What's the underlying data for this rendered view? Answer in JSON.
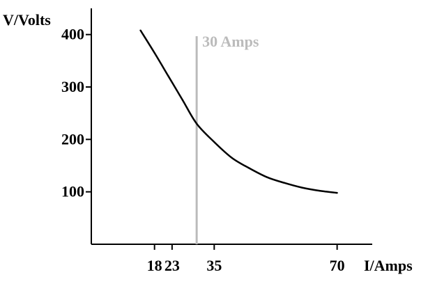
{
  "chart_data": {
    "type": "line",
    "title": "",
    "xlabel": "I/Amps",
    "ylabel": "V/Volts",
    "xlim": [
      0,
      80
    ],
    "ylim": [
      0,
      450
    ],
    "x_ticks": [
      18,
      23,
      35,
      70
    ],
    "x_tick_labels": [
      "18",
      "23",
      "35",
      "70"
    ],
    "y_ticks": [
      100,
      200,
      300,
      400
    ],
    "y_tick_labels": [
      "100",
      "200",
      "300",
      "400"
    ],
    "grid": false,
    "series": [
      {
        "color": "#000000",
        "x": [
          14,
          18,
          22,
          26,
          30,
          35,
          40,
          45,
          50,
          55,
          60,
          65,
          70
        ],
        "y": [
          408,
          365,
          320,
          275,
          230,
          195,
          165,
          145,
          128,
          117,
          108,
          102,
          98
        ]
      }
    ],
    "annotations": [
      {
        "type": "vline",
        "x": 30,
        "label": "30 Amps",
        "color": "#bbbbbb"
      }
    ]
  }
}
